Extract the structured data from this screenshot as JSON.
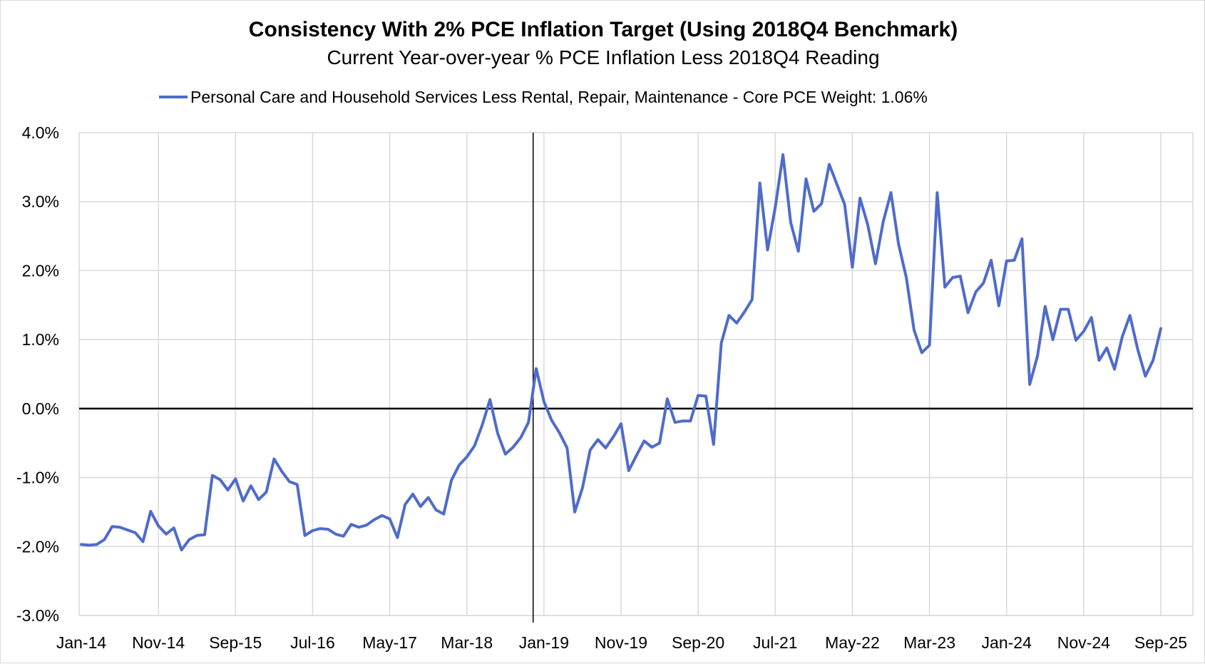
{
  "chart_data": {
    "type": "line",
    "title": "Consistency With 2% PCE Inflation Target (Using 2018Q4 Benchmark)",
    "subtitle": "Current Year-over-year % PCE Inflation Less 2018Q4 Reading",
    "xlabel": "",
    "ylabel": "",
    "ylim": [
      -3.0,
      4.0
    ],
    "y_ticks": [
      4.0,
      3.0,
      2.0,
      1.0,
      0.0,
      -1.0,
      -2.0,
      -3.0
    ],
    "y_tick_labels": [
      "4.0%",
      "3.0%",
      "2.0%",
      "1.0%",
      "0.0%",
      "-1.0%",
      "-2.0%",
      "-3.0%"
    ],
    "x_tick_labels": [
      "Jan-14",
      "Nov-14",
      "Sep-15",
      "Jul-16",
      "May-17",
      "Mar-18",
      "Jan-19",
      "Nov-19",
      "Sep-20",
      "Jul-21",
      "May-22",
      "Mar-23",
      "Jan-24",
      "Nov-24",
      "Sep-25"
    ],
    "x_start": "Jan-14",
    "x_end": "Sep-25",
    "reference_line_label": "2018Q4",
    "grid": true,
    "legend_position": "top-center",
    "colors": {
      "series": "#4F6BCB",
      "grid": "#d9d9d9",
      "axis": "#000000"
    },
    "series": [
      {
        "name": "Personal Care and Household Services Less Rental, Repair, Maintenance  - Core PCE Weight: 1.06%",
        "values": [
          -1.97,
          -1.98,
          -1.97,
          -1.9,
          -1.71,
          -1.72,
          -1.76,
          -1.8,
          -1.93,
          -1.49,
          -1.7,
          -1.82,
          -1.73,
          -2.05,
          -1.9,
          -1.84,
          -1.83,
          -0.97,
          -1.03,
          -1.18,
          -1.02,
          -1.34,
          -1.12,
          -1.32,
          -1.21,
          -0.73,
          -0.91,
          -1.06,
          -1.1,
          -1.84,
          -1.77,
          -1.74,
          -1.75,
          -1.82,
          -1.85,
          -1.68,
          -1.72,
          -1.69,
          -1.61,
          -1.55,
          -1.6,
          -1.87,
          -1.39,
          -1.24,
          -1.42,
          -1.29,
          -1.47,
          -1.53,
          -1.04,
          -0.82,
          -0.7,
          -0.54,
          -0.24,
          0.13,
          -0.36,
          -0.66,
          -0.56,
          -0.42,
          -0.2,
          0.58,
          0.1,
          -0.17,
          -0.35,
          -0.57,
          -1.5,
          -1.15,
          -0.6,
          -0.45,
          -0.57,
          -0.41,
          -0.22,
          -0.9,
          -0.68,
          -0.47,
          -0.56,
          -0.5,
          0.14,
          -0.2,
          -0.18,
          -0.18,
          0.19,
          0.18,
          -0.52,
          0.95,
          1.35,
          1.24,
          1.4,
          1.58,
          3.27,
          2.3,
          2.92,
          3.68,
          2.7,
          2.28,
          3.33,
          2.86,
          2.97,
          3.54,
          3.25,
          2.96,
          2.05,
          3.05,
          2.66,
          2.1,
          2.71,
          3.13,
          2.38,
          1.9,
          1.14,
          0.81,
          0.92,
          3.13,
          1.76,
          1.9,
          1.92,
          1.39,
          1.69,
          1.82,
          2.15,
          1.49,
          2.14,
          2.15,
          2.46,
          0.35,
          0.76,
          1.48,
          1.0,
          1.44,
          1.44,
          0.99,
          1.12,
          1.32,
          0.7,
          0.88,
          0.57,
          1.04,
          1.35,
          0.86,
          0.47,
          0.7,
          1.16
        ]
      }
    ]
  }
}
